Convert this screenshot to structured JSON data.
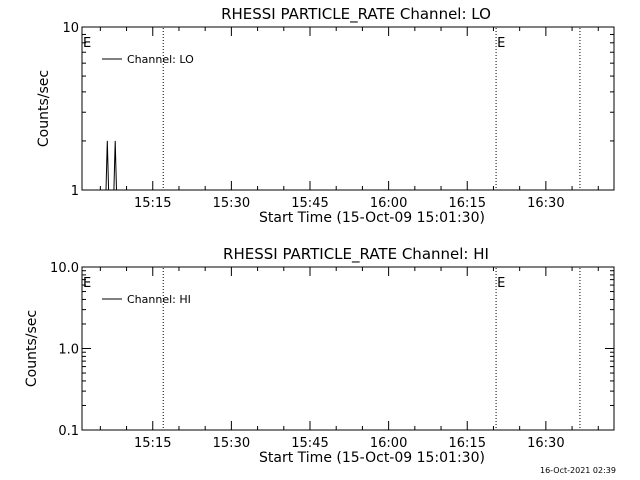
{
  "chart_data": [
    {
      "type": "line",
      "title": "RHESSI PARTICLE_RATE Channel: LO",
      "xlabel": "Start Time (15-Oct-09 15:01:30)",
      "ylabel": "Counts/sec",
      "y_scale": "log",
      "ylim": [
        1,
        10
      ],
      "yticks": [
        1,
        10
      ],
      "ytick_labels": [
        "1",
        "10"
      ],
      "xlim": [
        "15:01:30",
        "16:43:00"
      ],
      "xticks": [
        "15:15",
        "15:30",
        "15:45",
        "16:00",
        "16:15",
        "16:30"
      ],
      "legend": {
        "label": "Channel: LO",
        "position": "top-left"
      },
      "series": [
        {
          "name": "Channel: LO",
          "points": [
            [
              "15:06:05",
              1
            ],
            [
              "15:06:20",
              2
            ],
            [
              "15:06:35",
              1
            ],
            [
              "15:07:35",
              1
            ],
            [
              "15:07:50",
              2
            ],
            [
              "15:08:05",
              1
            ]
          ]
        }
      ],
      "event_lines": [
        {
          "time": "15:17:00",
          "label": ""
        },
        {
          "time": "16:20:30",
          "label": "E"
        },
        {
          "time": "16:36:30",
          "label": ""
        }
      ],
      "edge_label": "E",
      "grid": false
    },
    {
      "type": "line",
      "title": "RHESSI PARTICLE_RATE Channel: HI",
      "xlabel": "Start Time (15-Oct-09 15:01:30)",
      "ylabel": "Counts/sec",
      "y_scale": "log",
      "ylim": [
        0.1,
        10
      ],
      "yticks": [
        0.1,
        1,
        10
      ],
      "ytick_labels": [
        "0.1",
        "1.0",
        "10.0"
      ],
      "xlim": [
        "15:01:30",
        "16:43:00"
      ],
      "xticks": [
        "15:15",
        "15:30",
        "15:45",
        "16:00",
        "16:15",
        "16:30"
      ],
      "legend": {
        "label": "Channel: HI",
        "position": "top-left"
      },
      "series": [
        {
          "name": "Channel: HI",
          "points": []
        }
      ],
      "event_lines": [
        {
          "time": "15:17:00",
          "label": ""
        },
        {
          "time": "16:20:30",
          "label": "E"
        },
        {
          "time": "16:36:30",
          "label": ""
        }
      ],
      "edge_label": "E",
      "grid": false
    }
  ],
  "footer_timestamp": "16-Oct-2021 02:39"
}
